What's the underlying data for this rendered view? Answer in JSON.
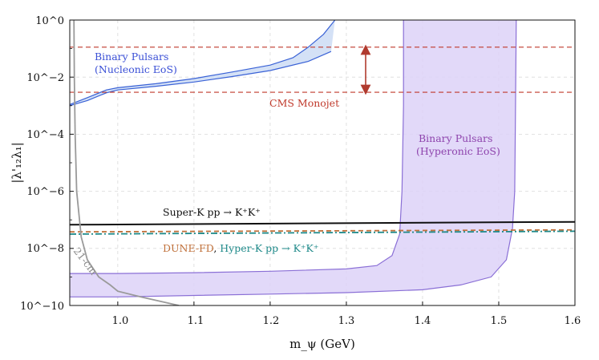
{
  "chart_data": {
    "type": "line",
    "title": "",
    "xlabel": "m_ψ (GeV)",
    "ylabel": "|λ'₁₂λ₁|",
    "xlim": [
      0.937,
      1.6
    ],
    "ylim_log10": [
      -10,
      0
    ],
    "x_ticks": [
      {
        "value": 1.0,
        "label": "1.0"
      },
      {
        "value": 1.1,
        "label": "1.1"
      },
      {
        "value": 1.2,
        "label": "1.2"
      },
      {
        "value": 1.3,
        "label": "1.3"
      },
      {
        "value": 1.4,
        "label": "1.4"
      },
      {
        "value": 1.5,
        "label": "1.5"
      },
      {
        "value": 1.6,
        "label": "1.6"
      }
    ],
    "y_ticks": [
      {
        "exp": 0,
        "label": "10^0"
      },
      {
        "exp": -2,
        "label": "10^−2"
      },
      {
        "exp": -4,
        "label": "10^−4"
      },
      {
        "exp": -6,
        "label": "10^−6"
      },
      {
        "exp": -8,
        "label": "10^−8"
      },
      {
        "exp": -10,
        "label": "10^−10"
      }
    ],
    "grid": true,
    "series": [
      {
        "name": "Binary Pulsars (Nucleonic EoS)",
        "kind": "band",
        "color": "#3a62d6",
        "fill": "#cddcf5",
        "upper": [
          [
            0.937,
            -2.96
          ],
          [
            0.96,
            -2.72
          ],
          [
            0.985,
            -2.45
          ],
          [
            1.0,
            -2.37
          ],
          [
            1.05,
            -2.23
          ],
          [
            1.1,
            -2.05
          ],
          [
            1.15,
            -1.82
          ],
          [
            1.2,
            -1.58
          ],
          [
            1.23,
            -1.32
          ],
          [
            1.25,
            -0.95
          ],
          [
            1.27,
            -0.5
          ],
          [
            1.285,
            0.0
          ]
        ],
        "lower": [
          [
            0.937,
            -3.0
          ],
          [
            0.96,
            -2.82
          ],
          [
            0.985,
            -2.55
          ],
          [
            1.0,
            -2.45
          ],
          [
            1.05,
            -2.32
          ],
          [
            1.1,
            -2.17
          ],
          [
            1.15,
            -1.98
          ],
          [
            1.2,
            -1.77
          ],
          [
            1.25,
            -1.45
          ],
          [
            1.28,
            -1.1
          ]
        ]
      },
      {
        "name": "Binary Pulsars (Hyperonic EoS)",
        "kind": "band",
        "color": "#8a6fd6",
        "fill": "#ddd2f8",
        "upper": [
          [
            0.937,
            -8.88
          ],
          [
            1.0,
            -8.88
          ],
          [
            1.1,
            -8.85
          ],
          [
            1.2,
            -8.8
          ],
          [
            1.3,
            -8.72
          ],
          [
            1.34,
            -8.6
          ],
          [
            1.36,
            -8.25
          ],
          [
            1.37,
            -7.5
          ],
          [
            1.373,
            -6.0
          ],
          [
            1.375,
            -3.0
          ],
          [
            1.375,
            0.0
          ]
        ],
        "lower": [
          [
            0.937,
            -9.7
          ],
          [
            1.0,
            -9.7
          ],
          [
            1.1,
            -9.65
          ],
          [
            1.2,
            -9.6
          ],
          [
            1.3,
            -9.55
          ],
          [
            1.4,
            -9.45
          ],
          [
            1.45,
            -9.28
          ],
          [
            1.49,
            -9.0
          ],
          [
            1.51,
            -8.4
          ],
          [
            1.518,
            -7.3
          ],
          [
            1.521,
            -6.0
          ],
          [
            1.522,
            -3.0
          ],
          [
            1.523,
            0.0
          ]
        ]
      },
      {
        "name": "CMS Monojet upper",
        "kind": "hline",
        "style": "dashed",
        "color": "#c0392b",
        "y_exp": -0.95
      },
      {
        "name": "CMS Monojet lower",
        "kind": "hline",
        "style": "dashed",
        "color": "#c0392b",
        "y_exp": -2.53
      },
      {
        "name": "Super-K pp → K⁺K⁺",
        "kind": "line",
        "style": "solid",
        "color": "#111111",
        "points": [
          [
            0.937,
            -7.17
          ],
          [
            1.6,
            -7.07
          ]
        ]
      },
      {
        "name": "DUNE-FD pp → K⁺K⁺",
        "kind": "line",
        "style": "dashed",
        "color": "#c0703a",
        "points": [
          [
            0.937,
            -7.42
          ],
          [
            1.6,
            -7.35
          ]
        ]
      },
      {
        "name": "Hyper-K pp → K⁺K⁺",
        "kind": "line",
        "style": "dashdot",
        "color": "#1f8a8a",
        "points": [
          [
            0.937,
            -7.5
          ],
          [
            1.6,
            -7.4
          ]
        ]
      },
      {
        "name": "21-cm",
        "kind": "line",
        "style": "solid",
        "color": "#9a9a9a",
        "points": [
          [
            0.9425,
            0.0
          ],
          [
            0.943,
            -2.0
          ],
          [
            0.944,
            -4.0
          ],
          [
            0.946,
            -6.0
          ],
          [
            0.952,
            -7.6
          ],
          [
            0.96,
            -8.4
          ],
          [
            0.975,
            -9.0
          ],
          [
            0.99,
            -9.28
          ],
          [
            1.0,
            -9.5
          ],
          [
            1.03,
            -9.7
          ],
          [
            1.08,
            -10.0
          ]
        ]
      }
    ],
    "annotations": [
      {
        "text": "Binary Pulsars",
        "color": "#3a4fd6"
      },
      {
        "text": "(Nucleonic EoS)",
        "color": "#3a4fd6"
      },
      {
        "text": "CMS Monojet",
        "color": "#c0392b"
      },
      {
        "text": "Binary Pulsars",
        "color": "#8e44ad"
      },
      {
        "text": "(Hyperonic EoS)",
        "color": "#8e44ad"
      },
      {
        "text": "Super-K pp → K⁺K⁺",
        "color": "#111111"
      },
      {
        "text": "DUNE-FD",
        "color": "#c0703a"
      },
      {
        "text": ", ",
        "color": "#111111"
      },
      {
        "text": "Hyper-K pp → K⁺K⁺",
        "color": "#1f8a8a"
      },
      {
        "text": "21-cm",
        "color": "#8a8a8a"
      }
    ]
  }
}
